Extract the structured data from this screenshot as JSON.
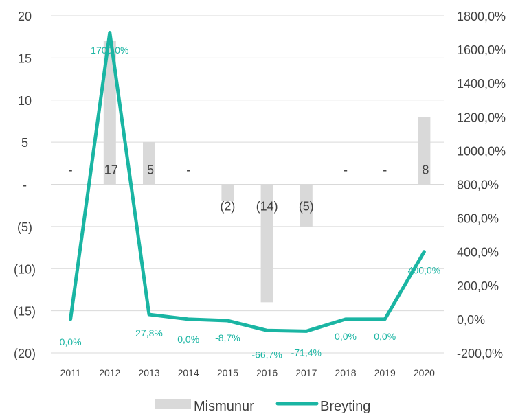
{
  "chart_data": {
    "type": "bar+line",
    "categories": [
      "2011",
      "2012",
      "2013",
      "2014",
      "2015",
      "2016",
      "2017",
      "2018",
      "2019",
      "2020"
    ],
    "left_axis": {
      "ticks": [
        20,
        15,
        10,
        5,
        0,
        -5,
        -10,
        -15,
        -20
      ],
      "tick_labels": [
        "20",
        "15",
        "10",
        "5",
        "-",
        "(5)",
        "(10)",
        "(15)",
        "(20)"
      ],
      "ylim": [
        -20,
        20
      ]
    },
    "right_axis": {
      "ticks": [
        1800,
        1600,
        1400,
        1200,
        1000,
        800,
        600,
        400,
        200,
        0,
        -200
      ],
      "tick_labels": [
        "1800,0%",
        "1600,0%",
        "1400,0%",
        "1200,0%",
        "1000,0%",
        "800,0%",
        "600,0%",
        "400,0%",
        "200,0%",
        "0,0%",
        "-200,0%"
      ],
      "ylim": [
        -200,
        1800
      ]
    },
    "series": [
      {
        "name": "Mismunur",
        "type": "bar",
        "axis": "left",
        "color": "#d9d9d9",
        "values": [
          0,
          17,
          5,
          0,
          -2,
          -14,
          -5,
          0,
          0,
          8
        ],
        "labels": [
          "-",
          "17",
          "5",
          "-",
          "(2)",
          "(14)",
          "(5)",
          "-",
          "-",
          "8"
        ]
      },
      {
        "name": "Breyting",
        "type": "line",
        "axis": "right",
        "color": "#1ab5a3",
        "values": [
          0,
          1700,
          27.8,
          0,
          -8.7,
          -66.7,
          -71.4,
          0,
          0,
          400
        ],
        "labels": [
          "0,0%",
          "1700,0%",
          "27,8%",
          "0,0%",
          "-8,7%",
          "-66,7%",
          "-71,4%",
          "0,0%",
          "0,0%",
          "400,0%"
        ]
      }
    ],
    "legend": {
      "position": "bottom",
      "items": [
        "Mismunur",
        "Breyting"
      ]
    },
    "grid": true
  }
}
